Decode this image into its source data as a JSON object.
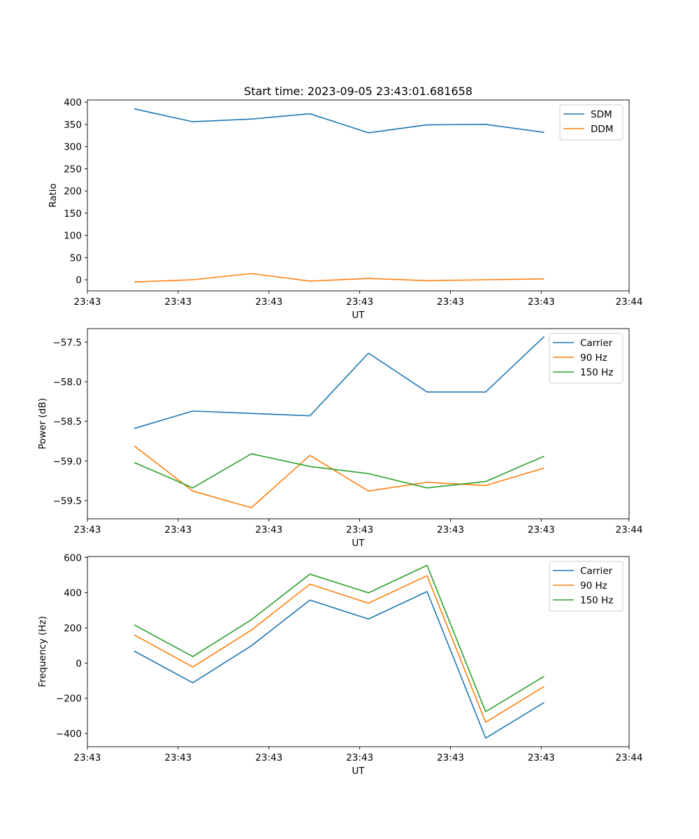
{
  "chart_data": [
    {
      "type": "line",
      "title": "Start time: 2023-09-05 23:43:01.681658",
      "xlabel": "UT",
      "ylabel": "Ratio",
      "x": [
        1,
        2,
        3,
        4,
        5,
        6,
        7,
        8
      ],
      "xlim": [
        0.2,
        9.45
      ],
      "x_ticks": [
        0.2,
        1.75,
        3.3,
        4.85,
        6.4,
        7.95,
        9.45
      ],
      "x_tick_labels": [
        "23:43",
        "23:43",
        "23:43",
        "23:43",
        "23:43",
        "23:43",
        "23:44"
      ],
      "ylim": [
        -25,
        405
      ],
      "y_ticks": [
        0,
        50,
        100,
        150,
        200,
        250,
        300,
        350,
        400
      ],
      "y_tick_labels": [
        "0",
        "50",
        "100",
        "150",
        "200",
        "250",
        "300",
        "350",
        "400"
      ],
      "legend_position": "top-right",
      "series": [
        {
          "name": "SDM",
          "color": "#1f77b4",
          "values": [
            385,
            356,
            362,
            374,
            331,
            349,
            350,
            332
          ]
        },
        {
          "name": "DDM",
          "color": "#ff7f0e",
          "values": [
            -5,
            0,
            14,
            -3,
            3,
            -2,
            0,
            2
          ]
        }
      ]
    },
    {
      "type": "line",
      "title": "",
      "xlabel": "UT",
      "ylabel": "Power (dB)",
      "x": [
        1,
        2,
        3,
        4,
        5,
        6,
        7,
        8
      ],
      "xlim": [
        0.2,
        9.45
      ],
      "x_ticks": [
        0.2,
        1.75,
        3.3,
        4.85,
        6.4,
        7.95,
        9.45
      ],
      "x_tick_labels": [
        "23:43",
        "23:43",
        "23:43",
        "23:43",
        "23:43",
        "23:43",
        "23:44"
      ],
      "ylim": [
        -59.73,
        -57.33
      ],
      "y_ticks": [
        -59.5,
        -59.0,
        -58.5,
        -58.0,
        -57.5
      ],
      "y_tick_labels": [
        "−59.5",
        "−59.0",
        "−58.5",
        "−58.0",
        "−57.5"
      ],
      "legend_position": "top-right",
      "series": [
        {
          "name": "Carrier",
          "color": "#1f77b4",
          "values": [
            -58.59,
            -58.37,
            -58.4,
            -58.43,
            -57.64,
            -58.13,
            -58.13,
            -57.43
          ]
        },
        {
          "name": "90 Hz",
          "color": "#ff7f0e",
          "values": [
            -58.81,
            -59.38,
            -59.59,
            -58.93,
            -59.38,
            -59.27,
            -59.31,
            -59.09
          ]
        },
        {
          "name": "150 Hz",
          "color": "#2ca02c",
          "values": [
            -59.02,
            -59.34,
            -58.91,
            -59.07,
            -59.16,
            -59.34,
            -59.26,
            -58.94
          ]
        }
      ]
    },
    {
      "type": "line",
      "title": "",
      "xlabel": "UT",
      "ylabel": "Frequency (Hz)",
      "x": [
        1,
        2,
        3,
        4,
        5,
        6,
        7,
        8
      ],
      "xlim": [
        0.2,
        9.45
      ],
      "x_ticks": [
        0.2,
        1.75,
        3.3,
        4.85,
        6.4,
        7.95,
        9.45
      ],
      "x_tick_labels": [
        "23:43",
        "23:43",
        "23:43",
        "23:43",
        "23:43",
        "23:43",
        "23:44"
      ],
      "ylim": [
        -475,
        605
      ],
      "y_ticks": [
        -400,
        -200,
        0,
        200,
        400,
        600
      ],
      "y_tick_labels": [
        "−400",
        "−200",
        "0",
        "200",
        "400",
        "600"
      ],
      "legend_position": "top-right",
      "series": [
        {
          "name": "Carrier",
          "color": "#1f77b4",
          "values": [
            68,
            -112,
            98,
            358,
            250,
            406,
            -426,
            -224
          ]
        },
        {
          "name": "90 Hz",
          "color": "#ff7f0e",
          "values": [
            160,
            -22,
            187,
            448,
            340,
            496,
            -336,
            -133
          ]
        },
        {
          "name": "150 Hz",
          "color": "#2ca02c",
          "values": [
            217,
            37,
            246,
            505,
            399,
            555,
            -276,
            -75
          ]
        }
      ]
    }
  ]
}
